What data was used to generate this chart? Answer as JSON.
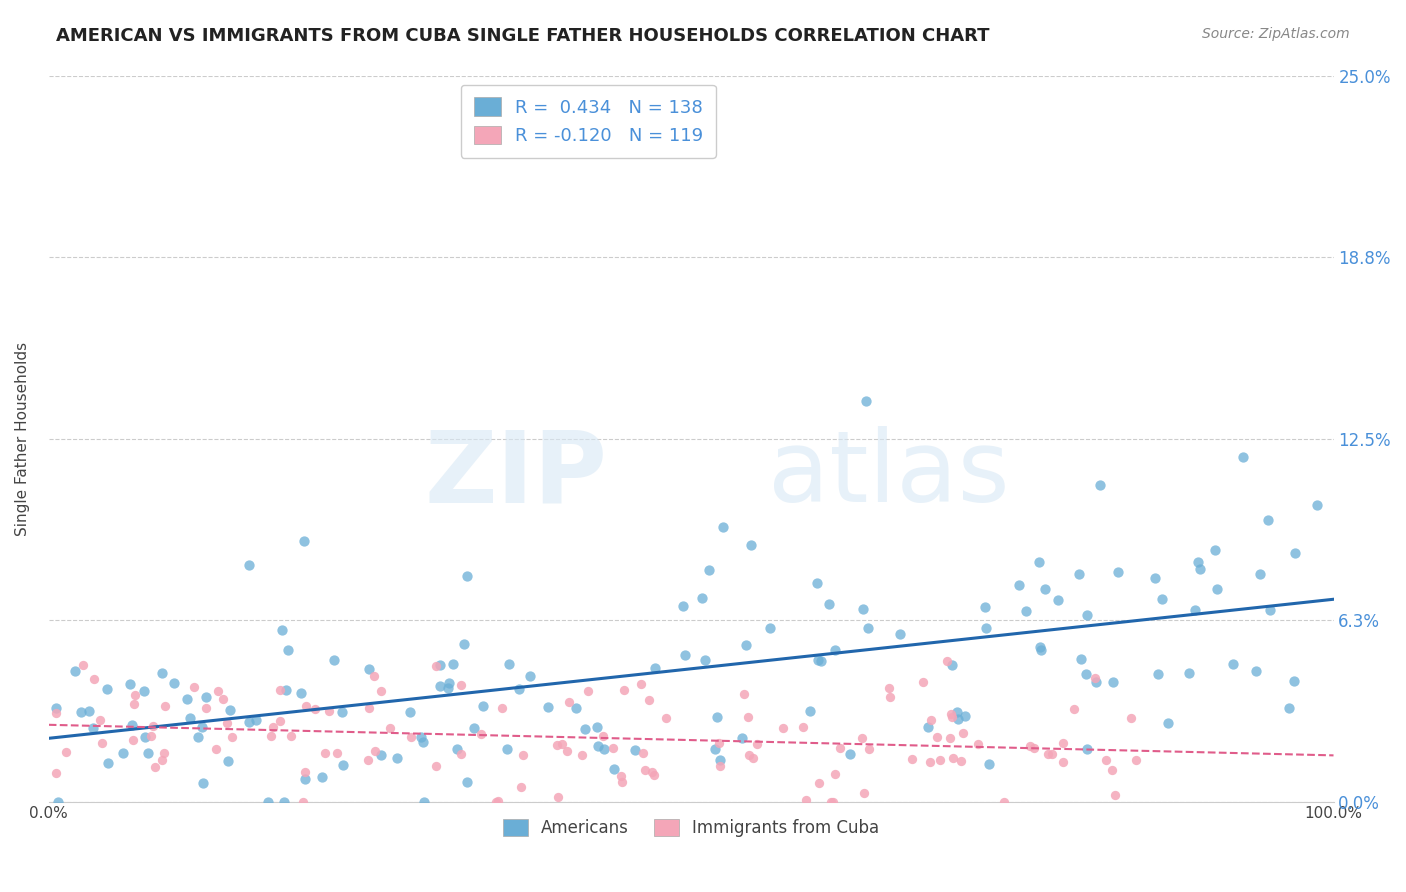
{
  "title": "AMERICAN VS IMMIGRANTS FROM CUBA SINGLE FATHER HOUSEHOLDS CORRELATION CHART",
  "source": "Source: ZipAtlas.com",
  "ylabel": "Single Father Households",
  "legend_label1": "Americans",
  "legend_label2": "Immigrants from Cuba",
  "r1": 0.434,
  "n1": 138,
  "r2": -0.12,
  "n2": 119,
  "color1": "#6aaed6",
  "color2": "#f4a6b8",
  "line_color1": "#2166ac",
  "line_color2": "#e05c8a",
  "xmin": 0.0,
  "xmax": 1.0,
  "ymin": 0.0,
  "ymax": 0.25,
  "yticks": [
    0.0,
    0.0625,
    0.125,
    0.1875,
    0.25
  ],
  "ytick_labels": [
    "0.0%",
    "6.3%",
    "12.5%",
    "18.8%",
    "25.0%"
  ],
  "xticks": [
    0.0,
    0.25,
    0.5,
    0.75,
    1.0
  ],
  "xtick_labels": [
    "0.0%",
    "",
    "",
    "",
    "100.0%"
  ],
  "seed1": 42,
  "seed2": 99,
  "background_color": "#ffffff",
  "watermark_zip": "ZIP",
  "watermark_atlas": "atlas",
  "title_fontsize": 13,
  "axis_label_fontsize": 11,
  "tick_fontsize": 11
}
